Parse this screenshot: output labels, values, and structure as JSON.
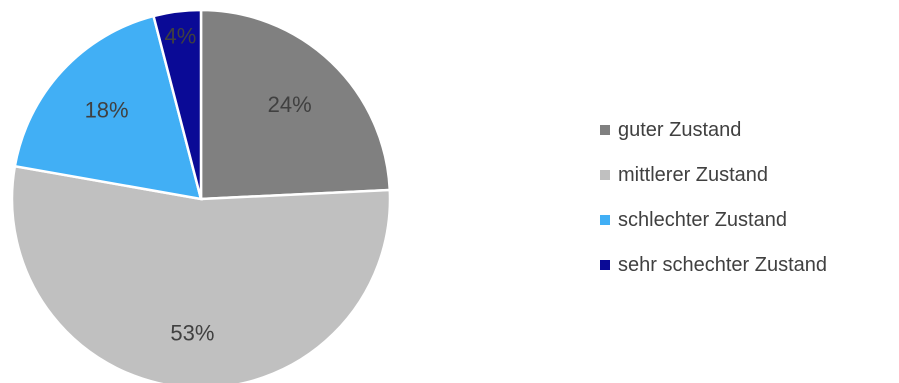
{
  "chart_data": {
    "type": "pie",
    "title": "",
    "categories": [
      "guter Zustand",
      "mittlerer Zustand",
      "schlechter Zustand",
      "sehr schechter Zustand"
    ],
    "values": [
      24,
      53,
      18,
      4
    ],
    "labels": [
      "24%",
      "53%",
      "18%",
      "4%"
    ],
    "colors": [
      "#808080",
      "#c0c0c0",
      "#41aff5",
      "#0a0a96"
    ],
    "legend_position": "right"
  }
}
